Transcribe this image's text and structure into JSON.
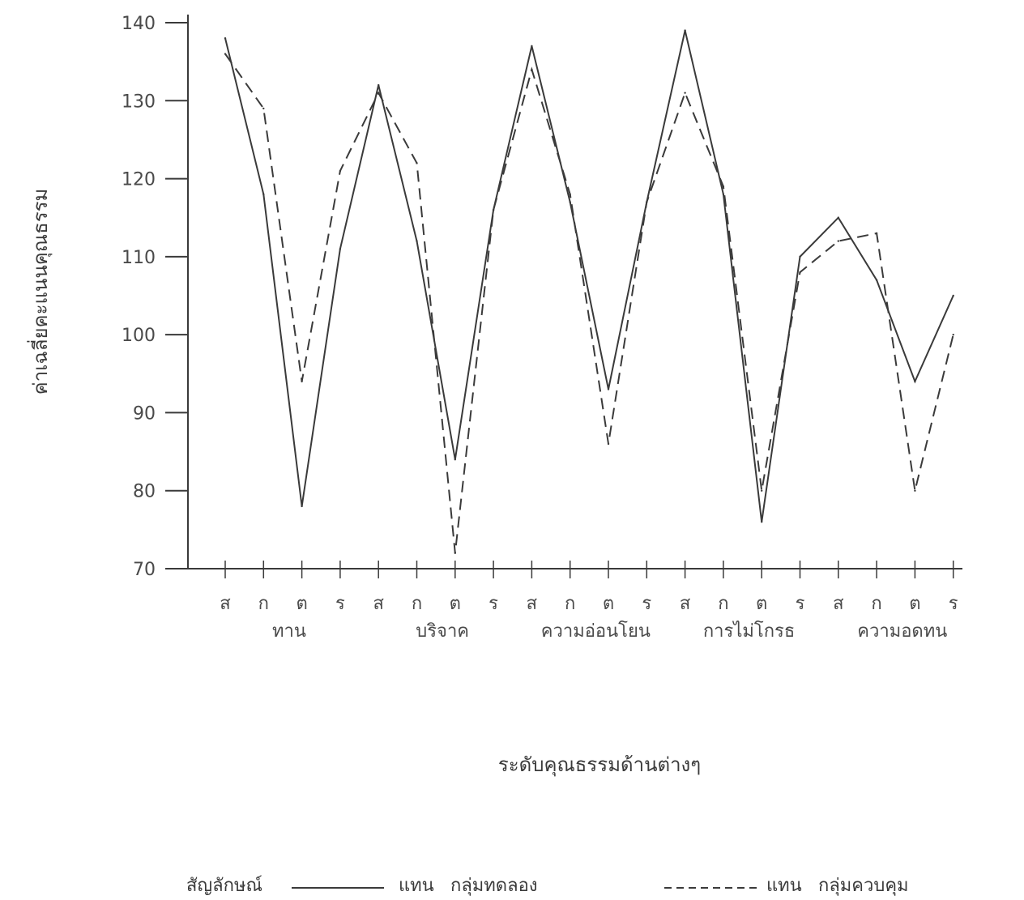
{
  "chart_data": {
    "type": "line",
    "title": "",
    "ylabel": "ค่าเฉลี่ยคะแนนคุณธรรม",
    "xlabel": "ระดับคุณธรรมด้านต่างๆ",
    "ylim": [
      70,
      140
    ],
    "yticks": [
      70,
      80,
      90,
      100,
      110,
      120,
      130,
      140
    ],
    "categories": [
      "ส",
      "ก",
      "ต",
      "ร",
      "ส",
      "ก",
      "ต",
      "ร",
      "ส",
      "ก",
      "ต",
      "ร",
      "ส",
      "ก",
      "ต",
      "ร",
      "ส",
      "ก",
      "ต",
      "ร"
    ],
    "groups": [
      "ทาน",
      "บริจาค",
      "ความอ่อนโยน",
      "การไม่โกรธ",
      "ความอดทน"
    ],
    "series": [
      {
        "name": "กลุ่มทดลอง",
        "style": "solid",
        "values": [
          138,
          118,
          78,
          111,
          132,
          112,
          84,
          116,
          137,
          117,
          93,
          117,
          139,
          118,
          76,
          110,
          115,
          107,
          94,
          105
        ]
      },
      {
        "name": "กลุ่มควบคุม",
        "style": "dashed",
        "values": [
          136,
          129,
          94,
          121,
          131,
          122,
          72,
          116,
          134,
          118,
          86,
          117,
          131,
          119,
          80,
          108,
          112,
          113,
          80,
          100
        ]
      }
    ],
    "legend": {
      "prefix": "สัญลักษณ์",
      "word": "แทน",
      "placement": "bottom"
    },
    "grid": false,
    "color": "#3a3a3a"
  }
}
